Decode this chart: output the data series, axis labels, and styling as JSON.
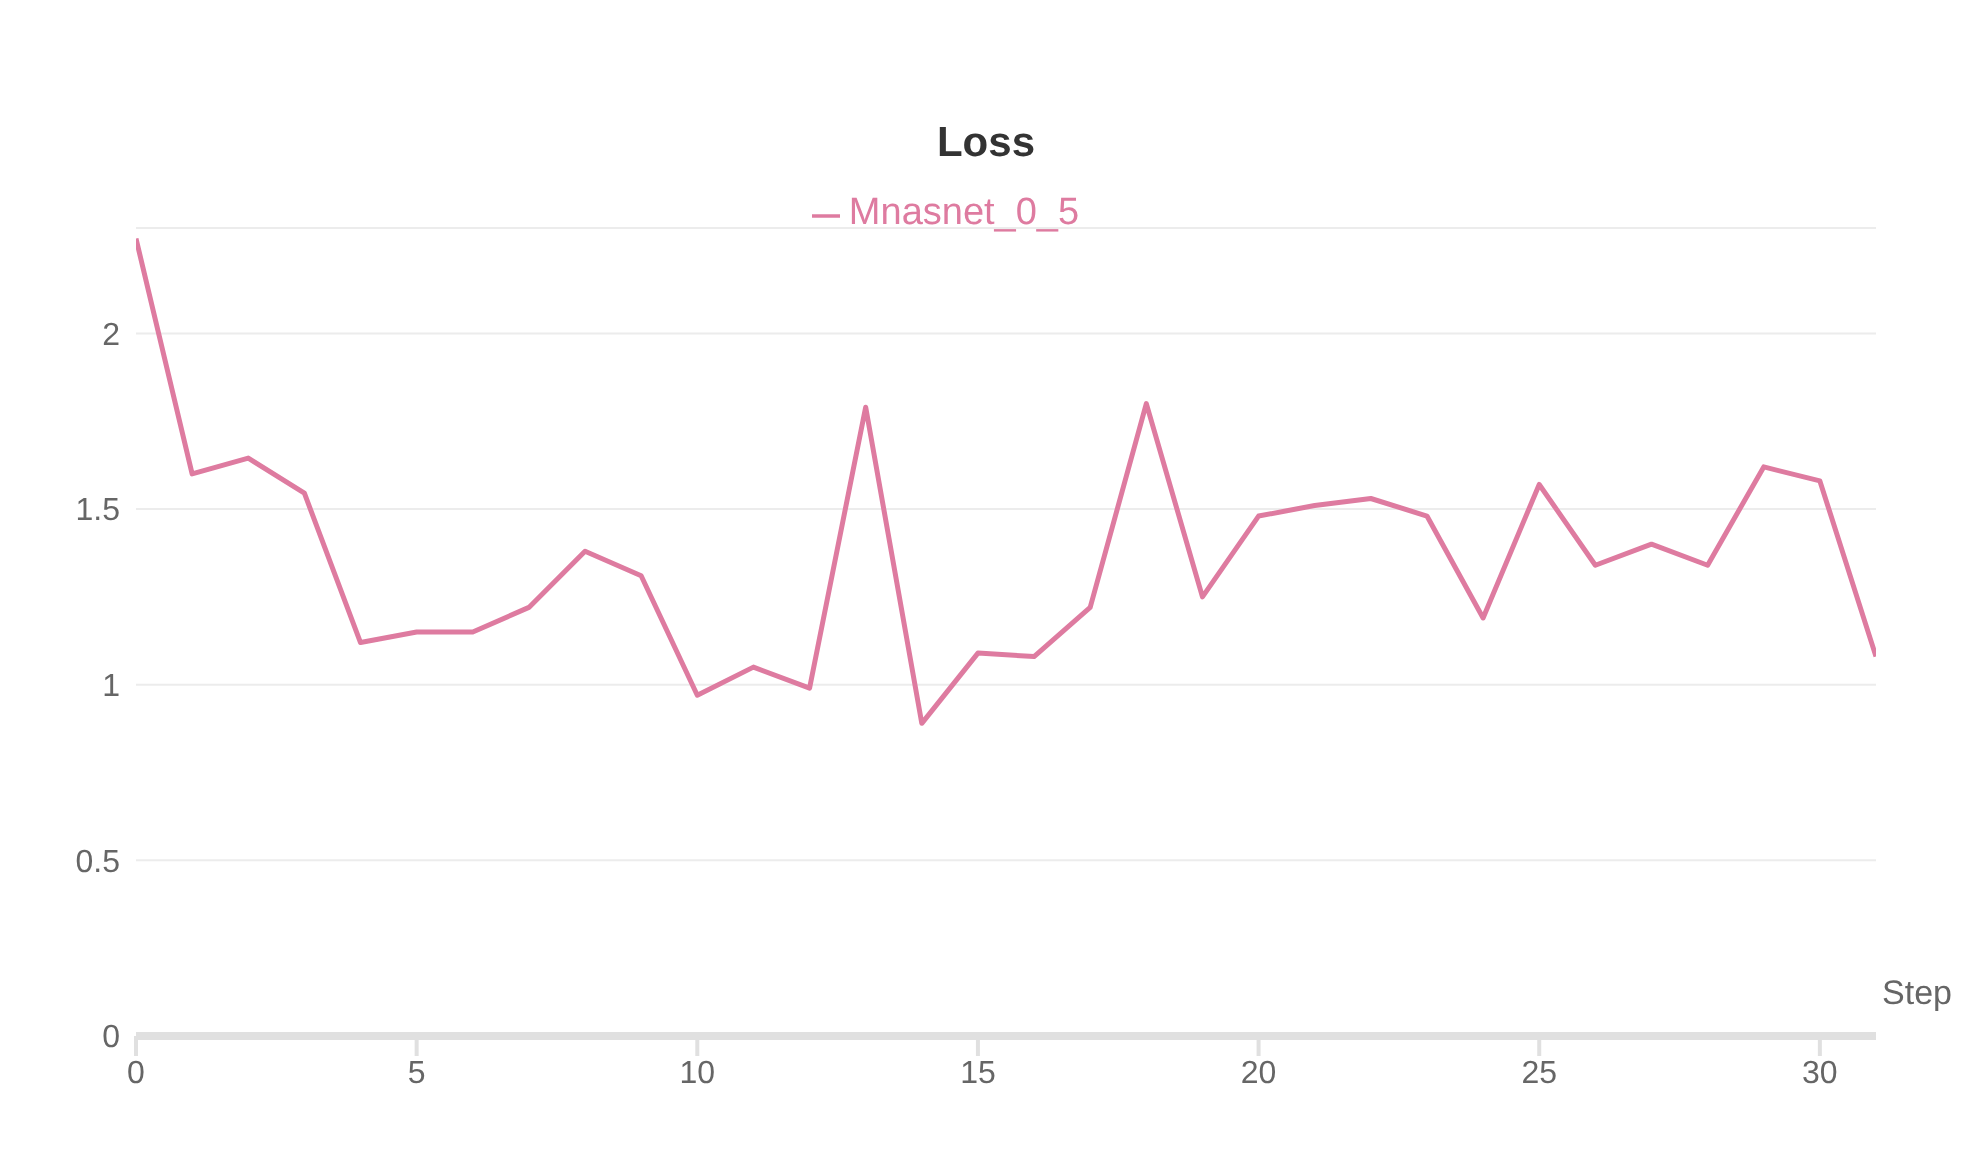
{
  "chart_data": {
    "type": "line",
    "title": "Loss",
    "xlabel": "Step",
    "x": [
      0,
      1,
      2,
      3,
      4,
      5,
      6,
      7,
      8,
      9,
      10,
      11,
      12,
      13,
      14,
      15,
      16,
      17,
      18,
      19,
      20,
      21,
      22,
      23,
      24,
      25,
      26,
      27,
      28,
      29,
      30,
      31
    ],
    "series": [
      {
        "name": "Mnasnet_0_5",
        "color": "#de7ba0",
        "values": [
          2.27,
          1.6,
          1.645,
          1.545,
          1.12,
          1.15,
          1.15,
          1.22,
          1.38,
          1.31,
          0.97,
          1.05,
          0.99,
          1.79,
          0.89,
          1.09,
          1.08,
          1.22,
          1.8,
          1.25,
          1.48,
          1.51,
          1.53,
          1.48,
          1.19,
          1.57,
          1.34,
          1.4,
          1.34,
          1.62,
          1.58,
          1.08
        ]
      }
    ],
    "xlim": [
      0,
      31
    ],
    "xticks": [
      0,
      5,
      10,
      15,
      20,
      25,
      30
    ],
    "ylim": [
      0,
      2.3
    ],
    "yticks": [
      0,
      0.5,
      1,
      1.5,
      2
    ],
    "grid": "y",
    "legend": "top",
    "marker": "none",
    "line_style": "solid"
  }
}
